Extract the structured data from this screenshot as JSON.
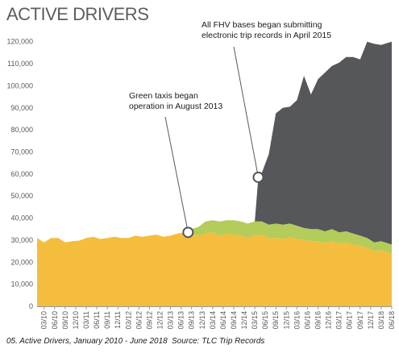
{
  "chart_data": {
    "type": "area",
    "title": "ACTIVE DRIVERS",
    "caption": "05. Active Drivers, January 2010 - June 2018",
    "source": "Source: TLC Trip Records",
    "stacked": true,
    "ylim": [
      0,
      125000
    ],
    "yticks": [
      0,
      10000,
      20000,
      30000,
      40000,
      50000,
      60000,
      70000,
      80000,
      90000,
      100000,
      110000,
      120000
    ],
    "ytick_labels": [
      "0",
      "10,000",
      "20,000",
      "30,000",
      "40,000",
      "50,000",
      "60,000",
      "70,000",
      "80,000",
      "90,000",
      "100,000",
      "110,000",
      "120,000"
    ],
    "xtick_labels": [
      "03/10",
      "06/10",
      "09/10",
      "12/10",
      "03/11",
      "06/11",
      "09/11",
      "12/11",
      "03/12",
      "06/12",
      "09/12",
      "12/12",
      "03/13",
      "06/13",
      "09/13",
      "12/13",
      "03/14",
      "06/14",
      "09/14",
      "12/14",
      "03/15",
      "06/15",
      "09/15",
      "12/15",
      "03/16",
      "06/16",
      "09/16",
      "12/16",
      "03/17",
      "06/17",
      "09/17",
      "12/17",
      "03/18",
      "06/18"
    ],
    "grid": false,
    "legend": "none",
    "colors": {
      "yellow": "#f5bd3d",
      "green": "#b3cc5a",
      "fhv": "#55575b",
      "axis": "#999999"
    },
    "x": [
      "2010-01",
      "2010-03",
      "2010-05",
      "2010-07",
      "2010-09",
      "2010-11",
      "2011-01",
      "2011-03",
      "2011-05",
      "2011-07",
      "2011-09",
      "2011-11",
      "2012-01",
      "2012-03",
      "2012-05",
      "2012-07",
      "2012-09",
      "2012-11",
      "2013-01",
      "2013-03",
      "2013-05",
      "2013-07",
      "2013-08",
      "2013-09",
      "2013-11",
      "2014-01",
      "2014-03",
      "2014-05",
      "2014-07",
      "2014-09",
      "2014-11",
      "2015-01",
      "2015-03",
      "2015-04",
      "2015-05",
      "2015-07",
      "2015-09",
      "2015-11",
      "2016-01",
      "2016-03",
      "2016-05",
      "2016-07",
      "2016-09",
      "2016-11",
      "2017-01",
      "2017-03",
      "2017-05",
      "2017-07",
      "2017-09",
      "2017-11",
      "2018-01",
      "2018-03",
      "2018-05",
      "2018-06"
    ],
    "series": [
      {
        "key": "yellow",
        "values": [
          31000,
          29000,
          31000,
          31000,
          29000,
          29500,
          29800,
          31000,
          31500,
          30500,
          31000,
          31500,
          31000,
          31000,
          32000,
          31500,
          32000,
          32500,
          31500,
          32000,
          33000,
          33500,
          33500,
          33000,
          32000,
          33000,
          33500,
          32000,
          33000,
          32500,
          32000,
          31000,
          32500,
          32000,
          32500,
          31000,
          31000,
          30500,
          31500,
          30500,
          30000,
          29500,
          29500,
          28500,
          29500,
          28500,
          29000,
          28000,
          27500,
          26500,
          25000,
          25500,
          24500,
          24000
        ]
      },
      {
        "key": "green",
        "values": [
          0,
          0,
          0,
          0,
          0,
          0,
          0,
          0,
          0,
          0,
          0,
          0,
          0,
          0,
          0,
          0,
          0,
          0,
          0,
          0,
          0,
          0,
          0,
          2000,
          4000,
          5500,
          5500,
          6500,
          6000,
          6500,
          6500,
          6500,
          6000,
          6500,
          6000,
          6000,
          6500,
          6500,
          6000,
          6000,
          5500,
          5500,
          5500,
          5500,
          5500,
          5000,
          5000,
          5000,
          4500,
          4500,
          4000,
          4000,
          4000,
          4000
        ]
      },
      {
        "key": "fhv",
        "values": [
          0,
          0,
          0,
          0,
          0,
          0,
          0,
          0,
          0,
          0,
          0,
          0,
          0,
          0,
          0,
          0,
          0,
          0,
          0,
          0,
          0,
          0,
          0,
          0,
          0,
          0,
          0,
          0,
          0,
          0,
          0,
          0,
          0,
          20000,
          22000,
          32000,
          50000,
          53000,
          53000,
          57000,
          69000,
          61000,
          68000,
          72000,
          74000,
          77000,
          79000,
          80000,
          80000,
          89000,
          90000,
          89000,
          91000,
          92000
        ]
      }
    ],
    "annotations": [
      {
        "lines": [
          "Green taxis began",
          "operation in August 2013"
        ],
        "point_x": "2013-08",
        "point_y": 33500
      },
      {
        "lines": [
          "All FHV bases began submitting",
          "electronic trip records in April 2015"
        ],
        "point_x": "2015-04",
        "point_y": 58500
      }
    ]
  }
}
